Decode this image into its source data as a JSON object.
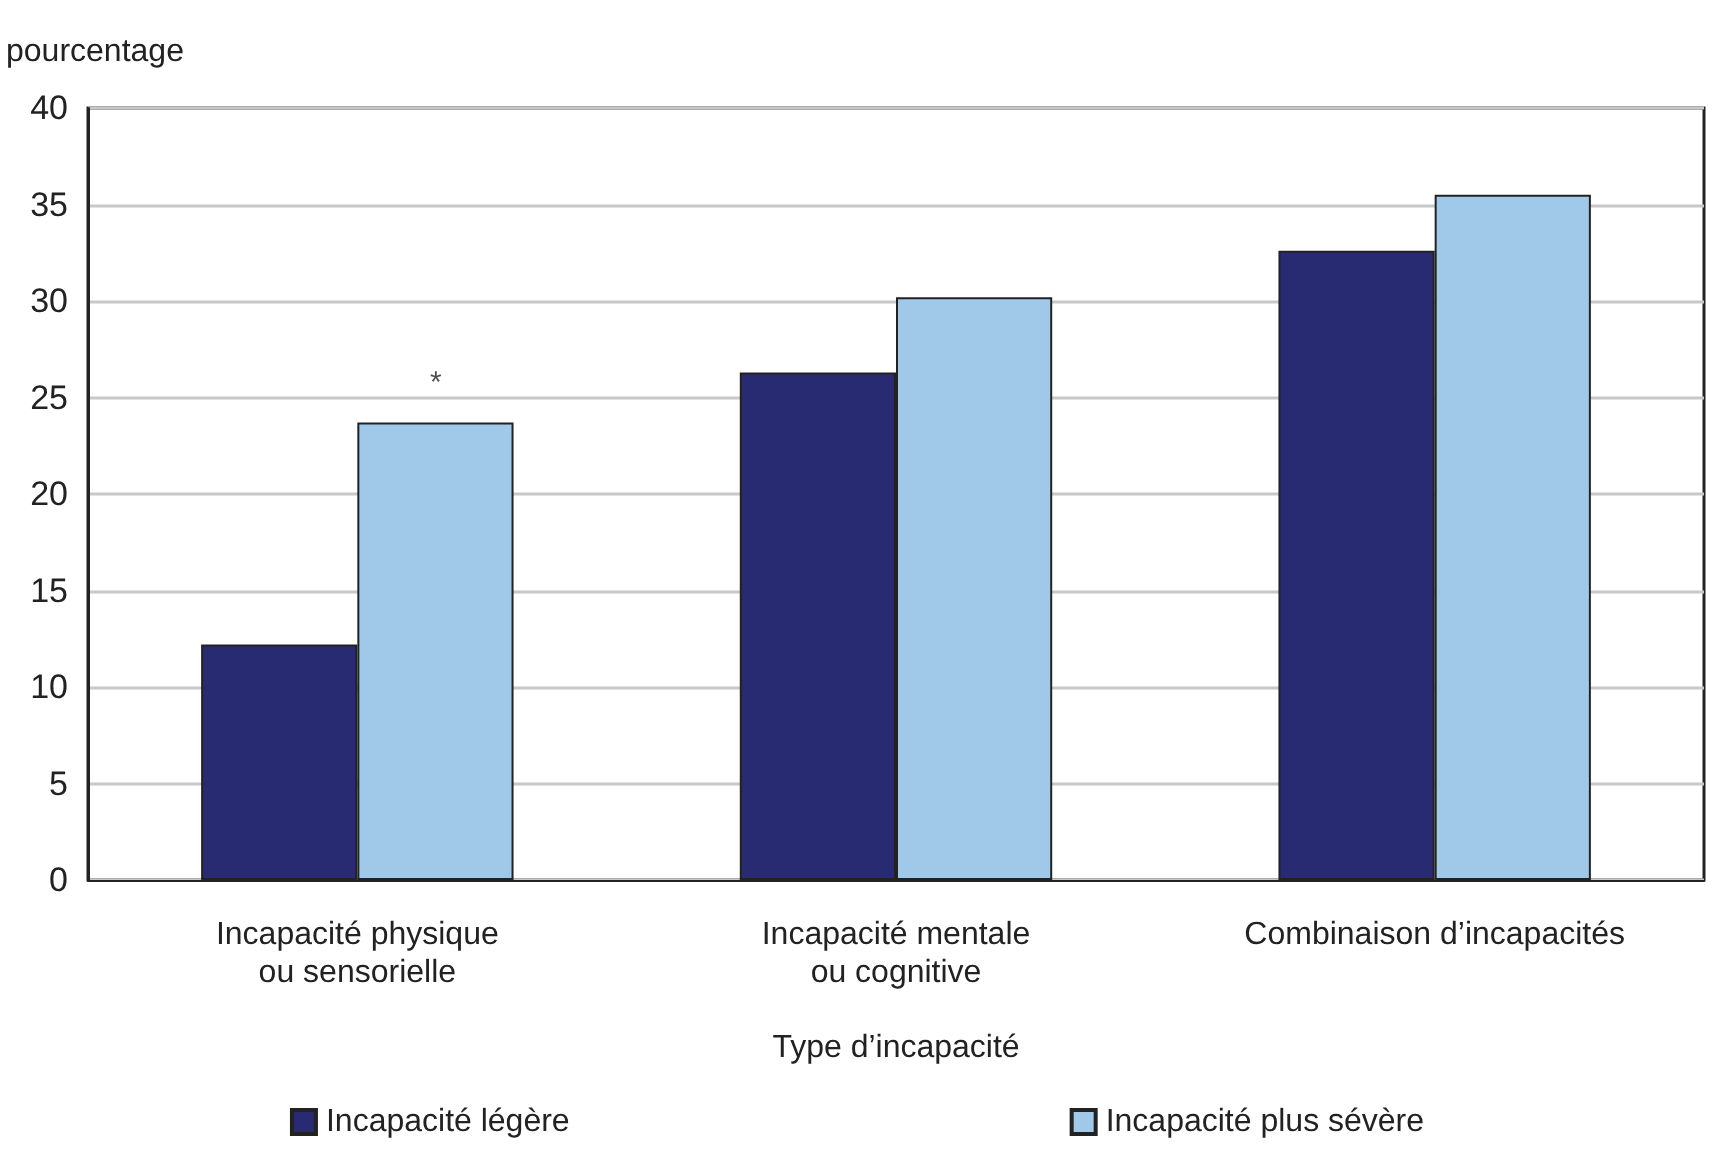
{
  "chart_data": {
    "type": "bar",
    "ylabel": "pourcentage",
    "xlabel": "Type d’incapacité",
    "categories": [
      "Incapacité physique\nou sensorielle",
      "Incapacité mentale\nou cognitive",
      "Combinaison d’incapacités"
    ],
    "series": [
      {
        "name": "Incapacité légère",
        "color": "#282a72",
        "values": [
          12.2,
          26.3,
          32.6
        ]
      },
      {
        "name": "Incapacité plus sévère",
        "color": "#a0c8e8",
        "values": [
          23.7,
          30.2,
          35.5
        ]
      }
    ],
    "ylim": [
      0,
      40
    ],
    "yticks": [
      0,
      5,
      10,
      15,
      20,
      25,
      30,
      35,
      40
    ],
    "grid": "y",
    "legend": "bottom",
    "annotations": [
      {
        "text": "*",
        "x": "Incapacité physique\nou sensorielle",
        "y": 23.7
      }
    ]
  }
}
